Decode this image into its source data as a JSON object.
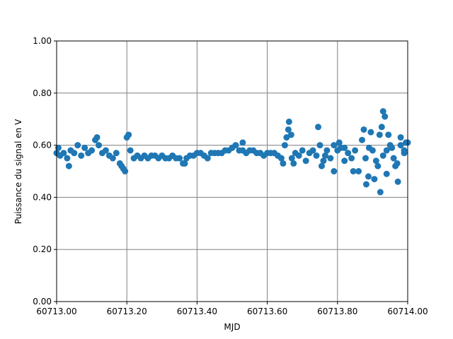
{
  "chart_data": {
    "type": "scatter",
    "xlabel": "MJD",
    "ylabel": "Puissance du signal en V",
    "color": "#1f77b4",
    "grid": true,
    "xlim": [
      60713.0,
      60714.0
    ],
    "xticks": [
      {
        "value": 60713.0,
        "label": "60713.00"
      },
      {
        "value": 60713.2,
        "label": "60713.20"
      },
      {
        "value": 60713.4,
        "label": "60713.40"
      },
      {
        "value": 60713.6,
        "label": "60713.60"
      },
      {
        "value": 60713.8,
        "label": "60713.80"
      },
      {
        "value": 60714.0,
        "label": "60714.00"
      }
    ],
    "ylim": [
      0,
      1
    ],
    "yticks": [
      {
        "value": 0,
        "label": "0.00"
      },
      {
        "value": 0.2,
        "label": "0.20"
      },
      {
        "value": 0.4,
        "label": "0.40"
      },
      {
        "value": 0.6,
        "label": "0.60"
      },
      {
        "value": 0.8,
        "label": "0.80"
      },
      {
        "value": 1,
        "label": "1.00"
      }
    ],
    "x": [
      60713.0,
      60713.01,
      60713.02,
      60713.03,
      60713.04,
      60713.05,
      60713.06,
      60713.07,
      60713.08,
      60713.09,
      60713.1,
      60713.11,
      60713.12,
      60713.13,
      60713.14,
      60713.15,
      60713.16,
      60713.17,
      60713.18,
      60713.19,
      60713.2,
      60713.21,
      60713.22,
      60713.23,
      60713.24,
      60713.25,
      60713.26,
      60713.27,
      60713.28,
      60713.29,
      60713.3,
      60713.31,
      60713.32,
      60713.33,
      60713.34,
      60713.35,
      60713.36,
      60713.37,
      60713.38,
      60713.39,
      60713.4,
      60713.41,
      60713.42,
      60713.43,
      60713.44,
      60713.45,
      60713.46,
      60713.47,
      60713.48,
      60713.49,
      60713.5,
      60713.51,
      60713.52,
      60713.53,
      60713.54,
      60713.55,
      60713.56,
      60713.57,
      60713.58,
      60713.59,
      60713.6,
      60713.61,
      60713.62,
      60713.63,
      60713.64,
      60713.65,
      60713.66,
      60713.67,
      60713.68,
      60713.69,
      60713.7,
      60713.71,
      60713.72,
      60713.73,
      60713.74,
      60713.75,
      60713.76,
      60713.77,
      60713.78,
      60713.79,
      60713.8,
      60713.81,
      60713.82,
      60713.83,
      60713.84,
      60713.85,
      60713.86,
      60713.87,
      60713.88,
      60713.89,
      60713.9,
      60713.91,
      60713.92,
      60713.93,
      60713.94,
      60713.95,
      60713.96,
      60713.97,
      60713.98,
      60713.99,
      60714.0,
      60713.005,
      60713.035,
      60713.115,
      60713.195,
      60713.205,
      60713.185,
      60713.365,
      60713.53,
      60713.645,
      60713.655,
      60713.662,
      60713.668,
      60713.675,
      60713.745,
      60713.755,
      60713.765,
      60713.79,
      60713.805,
      60713.82,
      60713.845,
      60713.875,
      60713.882,
      60713.888,
      60713.895,
      60713.905,
      60713.915,
      60713.922,
      60713.926,
      60713.93,
      60713.935,
      60713.94,
      60713.945,
      60713.955,
      60713.965,
      60713.972,
      60713.98,
      60713.99,
      60713.995
    ],
    "values": [
      0.57,
      0.56,
      0.57,
      0.55,
      0.58,
      0.57,
      0.6,
      0.56,
      0.59,
      0.57,
      0.58,
      0.62,
      0.6,
      0.57,
      0.58,
      0.56,
      0.55,
      0.57,
      0.53,
      0.51,
      0.63,
      0.58,
      0.55,
      0.56,
      0.55,
      0.56,
      0.55,
      0.56,
      0.56,
      0.55,
      0.56,
      0.55,
      0.55,
      0.56,
      0.55,
      0.55,
      0.53,
      0.55,
      0.56,
      0.56,
      0.57,
      0.57,
      0.56,
      0.55,
      0.57,
      0.57,
      0.57,
      0.57,
      0.58,
      0.58,
      0.59,
      0.6,
      0.58,
      0.58,
      0.57,
      0.58,
      0.58,
      0.57,
      0.57,
      0.56,
      0.57,
      0.57,
      0.57,
      0.56,
      0.55,
      0.6,
      0.66,
      0.55,
      0.57,
      0.56,
      0.58,
      0.54,
      0.57,
      0.58,
      0.56,
      0.6,
      0.54,
      0.58,
      0.55,
      0.6,
      0.58,
      0.59,
      0.54,
      0.57,
      0.55,
      0.58,
      0.5,
      0.62,
      0.55,
      0.59,
      0.58,
      0.54,
      0.64,
      0.56,
      0.58,
      0.6,
      0.55,
      0.53,
      0.6,
      0.58,
      0.61,
      0.59,
      0.52,
      0.63,
      0.5,
      0.64,
      0.52,
      0.53,
      0.61,
      0.53,
      0.63,
      0.69,
      0.64,
      0.53,
      0.67,
      0.52,
      0.56,
      0.5,
      0.61,
      0.59,
      0.5,
      0.66,
      0.45,
      0.48,
      0.65,
      0.47,
      0.52,
      0.42,
      0.67,
      0.73,
      0.71,
      0.49,
      0.64,
      0.59,
      0.52,
      0.46,
      0.63,
      0.57,
      0.61
    ]
  }
}
